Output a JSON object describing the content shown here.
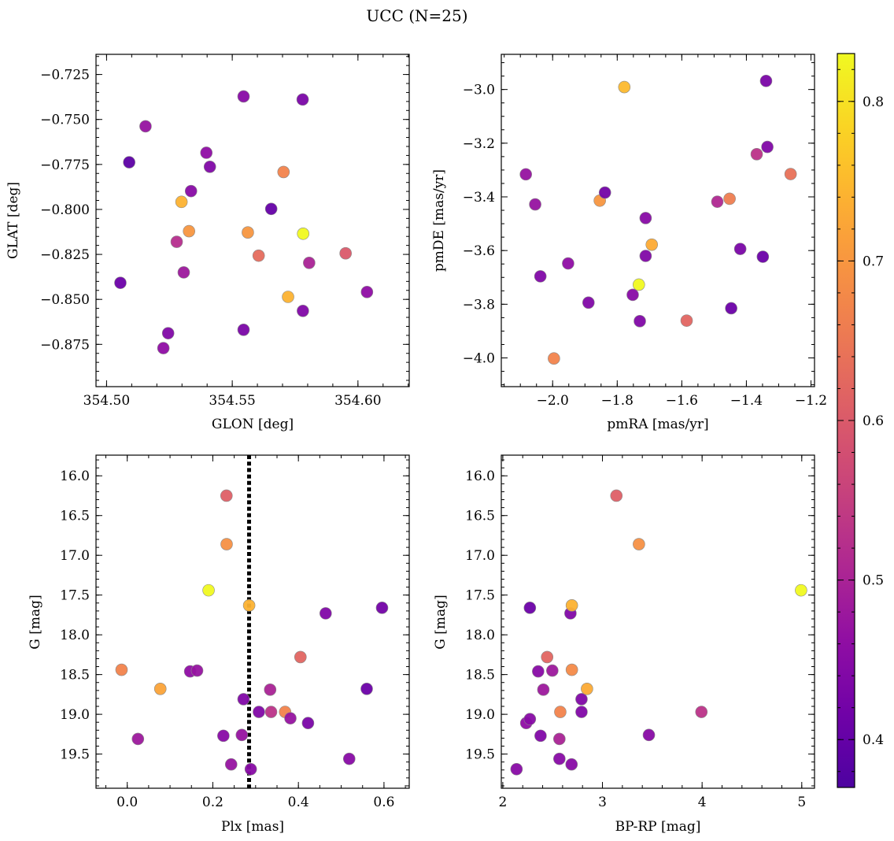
{
  "figure": {
    "title": "UCC (N=25)",
    "colormap": "plasma",
    "point_edge_color": "#8a8a8a",
    "colorbar": {
      "range": [
        0.37,
        0.83
      ],
      "ticks": [
        0.4,
        0.5,
        0.6,
        0.7,
        0.8
      ],
      "tick_labels": [
        "0.4",
        "0.5",
        "0.6",
        "0.7",
        "0.8"
      ]
    }
  },
  "chart_data": [
    {
      "id": "glon-glat",
      "type": "scatter",
      "title": "",
      "xlabel": "GLON [deg]",
      "ylabel": "GLAT [deg]",
      "xlim": [
        354.4958,
        354.6204
      ],
      "ylim": [
        -0.8985,
        -0.7138
      ],
      "y_inverted": false,
      "x_ticks": [
        354.5,
        354.55,
        354.6
      ],
      "x_tick_labels": [
        "354.50",
        "354.55",
        "354.60"
      ],
      "x_minor_step": 0.01,
      "y_ticks": [
        -0.875,
        -0.85,
        -0.825,
        -0.8,
        -0.775,
        -0.75,
        -0.725
      ],
      "y_tick_labels": [
        "−0.875",
        "−0.850",
        "−0.825",
        "−0.800",
        "−0.775",
        "−0.750",
        "−0.725"
      ],
      "y_minor_step": 0.005,
      "points": [
        {
          "x": 354.509,
          "y": -0.7738,
          "c": 0.39
        },
        {
          "x": 354.5155,
          "y": -0.7538,
          "c": 0.47
        },
        {
          "x": 354.5055,
          "y": -0.8408,
          "c": 0.41
        },
        {
          "x": 354.5245,
          "y": -0.8688,
          "c": 0.44
        },
        {
          "x": 354.5226,
          "y": -0.8771,
          "c": 0.46
        },
        {
          "x": 354.5279,
          "y": -0.818,
          "c": 0.52
        },
        {
          "x": 354.5298,
          "y": -0.7958,
          "c": 0.74
        },
        {
          "x": 354.5307,
          "y": -0.835,
          "c": 0.48
        },
        {
          "x": 354.5328,
          "y": -0.8121,
          "c": 0.7
        },
        {
          "x": 354.5336,
          "y": -0.7898,
          "c": 0.45
        },
        {
          "x": 354.5397,
          "y": -0.7685,
          "c": 0.46
        },
        {
          "x": 354.5411,
          "y": -0.7763,
          "c": 0.44
        },
        {
          "x": 354.5545,
          "y": -0.7372,
          "c": 0.45
        },
        {
          "x": 354.5545,
          "y": -0.8669,
          "c": 0.43
        },
        {
          "x": 354.5562,
          "y": -0.8128,
          "c": 0.7
        },
        {
          "x": 354.5605,
          "y": -0.8257,
          "c": 0.63
        },
        {
          "x": 354.5655,
          "y": -0.7997,
          "c": 0.4
        },
        {
          "x": 354.5704,
          "y": -0.7792,
          "c": 0.67
        },
        {
          "x": 354.5722,
          "y": -0.8486,
          "c": 0.74
        },
        {
          "x": 354.578,
          "y": -0.7389,
          "c": 0.43
        },
        {
          "x": 354.5781,
          "y": -0.8564,
          "c": 0.44
        },
        {
          "x": 354.5782,
          "y": -0.8135,
          "c": 0.83
        },
        {
          "x": 354.5806,
          "y": -0.8297,
          "c": 0.5
        },
        {
          "x": 354.5951,
          "y": -0.8244,
          "c": 0.6
        },
        {
          "x": 354.6036,
          "y": -0.8459,
          "c": 0.46
        }
      ]
    },
    {
      "id": "pmra-pmde",
      "type": "scatter",
      "title": "",
      "xlabel": "pmRA [mas/yr]",
      "ylabel": "pmDE [mas/yr]",
      "xlim": [
        -2.159,
        -1.189
      ],
      "ylim": [
        -4.107,
        -2.869
      ],
      "y_inverted": false,
      "x_ticks": [
        -2.0,
        -1.8,
        -1.6,
        -1.4,
        -1.2
      ],
      "x_tick_labels": [
        "−2.0",
        "−1.8",
        "−1.6",
        "−1.4",
        "−1.2"
      ],
      "x_minor_step": 0.05,
      "y_ticks": [
        -4.0,
        -3.8,
        -3.6,
        -3.4,
        -3.2,
        -3.0
      ],
      "y_tick_labels": [
        "−4.0",
        "−3.8",
        "−3.6",
        "−3.4",
        "−3.2",
        "−3.0"
      ],
      "y_minor_step": 0.05,
      "points": [
        {
          "x": -2.083,
          "y": -3.316,
          "c": 0.47
        },
        {
          "x": -2.054,
          "y": -3.428,
          "c": 0.47
        },
        {
          "x": -2.038,
          "y": -3.696,
          "c": 0.44
        },
        {
          "x": -1.996,
          "y": -4.002,
          "c": 0.67
        },
        {
          "x": -1.952,
          "y": -3.648,
          "c": 0.46
        },
        {
          "x": -1.889,
          "y": -3.794,
          "c": 0.44
        },
        {
          "x": -1.854,
          "y": -3.414,
          "c": 0.7
        },
        {
          "x": -1.838,
          "y": -3.384,
          "c": 0.42
        },
        {
          "x": -1.778,
          "y": -2.991,
          "c": 0.75
        },
        {
          "x": -1.752,
          "y": -3.765,
          "c": 0.45
        },
        {
          "x": -1.733,
          "y": -3.727,
          "c": 0.83
        },
        {
          "x": -1.73,
          "y": -3.863,
          "c": 0.44
        },
        {
          "x": -1.712,
          "y": -3.479,
          "c": 0.45
        },
        {
          "x": -1.712,
          "y": -3.62,
          "c": 0.44
        },
        {
          "x": -1.693,
          "y": -3.578,
          "c": 0.73
        },
        {
          "x": -1.585,
          "y": -3.861,
          "c": 0.62
        },
        {
          "x": -1.49,
          "y": -3.418,
          "c": 0.51
        },
        {
          "x": -1.452,
          "y": -3.407,
          "c": 0.66
        },
        {
          "x": -1.447,
          "y": -3.815,
          "c": 0.41
        },
        {
          "x": -1.419,
          "y": -3.594,
          "c": 0.43
        },
        {
          "x": -1.368,
          "y": -3.241,
          "c": 0.53
        },
        {
          "x": -1.349,
          "y": -3.623,
          "c": 0.41
        },
        {
          "x": -1.339,
          "y": -2.968,
          "c": 0.43
        },
        {
          "x": -1.335,
          "y": -3.214,
          "c": 0.44
        },
        {
          "x": -1.263,
          "y": -3.315,
          "c": 0.64
        }
      ]
    },
    {
      "id": "plx-g",
      "type": "scatter",
      "title": "",
      "xlabel": "Plx [mas]",
      "ylabel": "G [mag]",
      "xlim": [
        -0.073,
        0.659
      ],
      "ylim": [
        15.74,
        19.93
      ],
      "y_inverted": true,
      "x_ticks": [
        0.0,
        0.2,
        0.4,
        0.6
      ],
      "x_tick_labels": [
        "0.0",
        "0.2",
        "0.4",
        "0.6"
      ],
      "x_minor_step": 0.05,
      "y_ticks": [
        16.0,
        16.5,
        17.0,
        17.5,
        18.0,
        18.5,
        19.0,
        19.5
      ],
      "y_tick_labels": [
        "16.0",
        "16.5",
        "17.0",
        "17.5",
        "18.0",
        "18.5",
        "19.0",
        "19.5"
      ],
      "y_minor_step": 0.1,
      "vline": {
        "x": 0.2847,
        "style": "dotted",
        "color": "#000000"
      },
      "points": [
        {
          "x": -0.0133,
          "y": 18.44,
          "c": 0.67
        },
        {
          "x": 0.025,
          "y": 19.31,
          "c": 0.48
        },
        {
          "x": 0.0773,
          "y": 18.68,
          "c": 0.72
        },
        {
          "x": 0.147,
          "y": 18.46,
          "c": 0.46
        },
        {
          "x": 0.1633,
          "y": 18.45,
          "c": 0.47
        },
        {
          "x": 0.1901,
          "y": 17.44,
          "c": 0.83
        },
        {
          "x": 0.2247,
          "y": 19.27,
          "c": 0.45
        },
        {
          "x": 0.2319,
          "y": 16.25,
          "c": 0.61
        },
        {
          "x": 0.2323,
          "y": 16.86,
          "c": 0.69
        },
        {
          "x": 0.2429,
          "y": 19.63,
          "c": 0.47
        },
        {
          "x": 0.2678,
          "y": 19.26,
          "c": 0.47
        },
        {
          "x": 0.2718,
          "y": 18.81,
          "c": 0.44
        },
        {
          "x": 0.2849,
          "y": 17.63,
          "c": 0.74
        },
        {
          "x": 0.2887,
          "y": 19.69,
          "c": 0.45
        },
        {
          "x": 0.3076,
          "y": 18.97,
          "c": 0.44
        },
        {
          "x": 0.334,
          "y": 18.69,
          "c": 0.5
        },
        {
          "x": 0.3362,
          "y": 18.97,
          "c": 0.53
        },
        {
          "x": 0.3689,
          "y": 18.97,
          "c": 0.67
        },
        {
          "x": 0.3813,
          "y": 19.05,
          "c": 0.47
        },
        {
          "x": 0.4048,
          "y": 18.28,
          "c": 0.62
        },
        {
          "x": 0.4225,
          "y": 19.11,
          "c": 0.43
        },
        {
          "x": 0.4637,
          "y": 17.73,
          "c": 0.44
        },
        {
          "x": 0.5188,
          "y": 19.56,
          "c": 0.45
        },
        {
          "x": 0.5597,
          "y": 18.68,
          "c": 0.41
        },
        {
          "x": 0.5955,
          "y": 17.66,
          "c": 0.42
        }
      ]
    },
    {
      "id": "bprp-g",
      "type": "scatter",
      "title": "",
      "xlabel": "BP-RP [mag]",
      "ylabel": "G [mag]",
      "xlim": [
        1.985,
        5.128
      ],
      "ylim": [
        15.74,
        19.93
      ],
      "y_inverted": true,
      "x_ticks": [
        2,
        3,
        4,
        5
      ],
      "x_tick_labels": [
        "2",
        "3",
        "4",
        "5"
      ],
      "x_minor_step": 0.2,
      "y_ticks": [
        16.0,
        16.5,
        17.0,
        17.5,
        18.0,
        18.5,
        19.0,
        19.5
      ],
      "y_tick_labels": [
        "16.0",
        "16.5",
        "17.0",
        "17.5",
        "18.0",
        "18.5",
        "19.0",
        "19.5"
      ],
      "y_minor_step": 0.1,
      "points": [
        {
          "x": 2.138,
          "y": 19.69,
          "c": 0.45
        },
        {
          "x": 2.235,
          "y": 19.11,
          "c": 0.46
        },
        {
          "x": 2.272,
          "y": 19.06,
          "c": 0.45
        },
        {
          "x": 2.272,
          "y": 17.66,
          "c": 0.41
        },
        {
          "x": 2.355,
          "y": 18.46,
          "c": 0.45
        },
        {
          "x": 2.379,
          "y": 19.27,
          "c": 0.44
        },
        {
          "x": 2.407,
          "y": 18.69,
          "c": 0.48
        },
        {
          "x": 2.445,
          "y": 18.28,
          "c": 0.62
        },
        {
          "x": 2.497,
          "y": 18.45,
          "c": 0.48
        },
        {
          "x": 2.568,
          "y": 19.56,
          "c": 0.45
        },
        {
          "x": 2.568,
          "y": 19.31,
          "c": 0.5
        },
        {
          "x": 2.577,
          "y": 18.97,
          "c": 0.67
        },
        {
          "x": 2.679,
          "y": 17.73,
          "c": 0.44
        },
        {
          "x": 2.69,
          "y": 19.63,
          "c": 0.45
        },
        {
          "x": 2.693,
          "y": 17.63,
          "c": 0.74
        },
        {
          "x": 2.693,
          "y": 18.44,
          "c": 0.68
        },
        {
          "x": 2.79,
          "y": 18.81,
          "c": 0.44
        },
        {
          "x": 2.79,
          "y": 18.97,
          "c": 0.44
        },
        {
          "x": 2.845,
          "y": 18.68,
          "c": 0.73
        },
        {
          "x": 3.14,
          "y": 16.25,
          "c": 0.61
        },
        {
          "x": 3.366,
          "y": 16.86,
          "c": 0.69
        },
        {
          "x": 3.466,
          "y": 19.26,
          "c": 0.45
        },
        {
          "x": 3.993,
          "y": 18.97,
          "c": 0.53
        },
        {
          "x": 4.993,
          "y": 17.44,
          "c": 0.83
        }
      ]
    }
  ]
}
